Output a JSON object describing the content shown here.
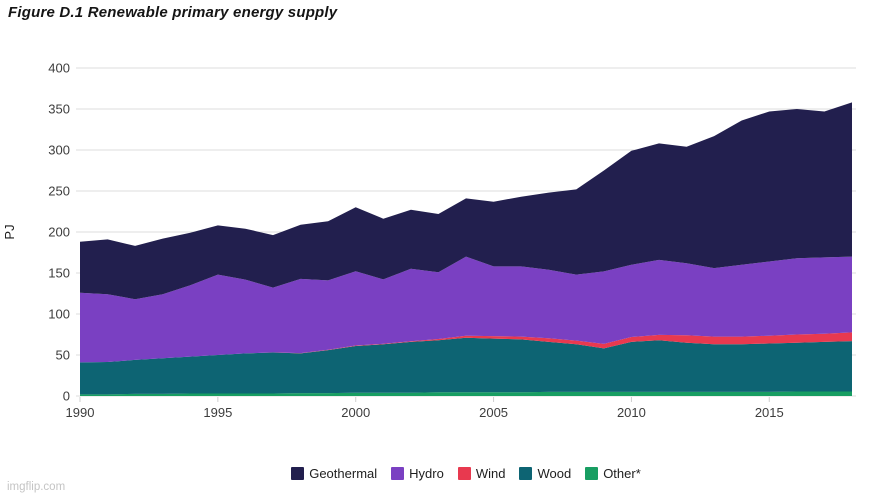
{
  "title": "Figure D.1 Renewable primary energy supply",
  "watermark": "imgflip.com",
  "chart_data": {
    "type": "area",
    "stacked": true,
    "title": "Figure D.1 Renewable primary energy supply",
    "xlabel": "",
    "ylabel": "PJ",
    "ylim": [
      0,
      400
    ],
    "yticks": [
      0,
      50,
      100,
      150,
      200,
      250,
      300,
      350,
      400
    ],
    "xticks": [
      1990,
      1995,
      2000,
      2005,
      2010,
      2015
    ],
    "grid": "horizontal",
    "legend_position": "bottom",
    "x": [
      1990,
      1991,
      1992,
      1993,
      1994,
      1995,
      1996,
      1997,
      1998,
      1999,
      2000,
      2001,
      2002,
      2003,
      2004,
      2005,
      2006,
      2007,
      2008,
      2009,
      2010,
      2011,
      2012,
      2013,
      2014,
      2015,
      2016,
      2017,
      2018
    ],
    "series": [
      {
        "name": "Other*",
        "color": "#189e62",
        "values": [
          2,
          2,
          2.5,
          2.5,
          3,
          3,
          3,
          3,
          3.5,
          3.5,
          4,
          4,
          4,
          4.5,
          4.5,
          4.5,
          4.5,
          5,
          5,
          5,
          5,
          5,
          5,
          5,
          5,
          5,
          5.5,
          5.5,
          5.5
        ]
      },
      {
        "name": "Wood",
        "color": "#0d6473",
        "values": [
          39,
          39.5,
          41.5,
          43.5,
          45,
          47,
          49,
          50,
          48.5,
          52.5,
          57,
          59,
          62,
          63.5,
          66.5,
          65.5,
          64.5,
          61,
          58,
          53,
          61,
          63,
          60,
          58,
          58,
          59,
          59.5,
          60.5,
          61.5
        ]
      },
      {
        "name": "Wind",
        "color": "#e8394f",
        "values": [
          0,
          0,
          0,
          0,
          0,
          0,
          0,
          0.2,
          0.3,
          0.5,
          0.6,
          0.7,
          0.7,
          1.5,
          2.5,
          3,
          3.5,
          4.5,
          4.5,
          5.5,
          6,
          6.5,
          9,
          9.5,
          9.5,
          9.5,
          10,
          10,
          10.5
        ]
      },
      {
        "name": "Hydro",
        "color": "#7a40c2",
        "values": [
          85,
          82.5,
          74,
          78,
          87,
          98,
          90,
          79,
          90.5,
          84.5,
          90.5,
          78.5,
          88.5,
          81.5,
          96.5,
          85,
          85.5,
          83.5,
          80.5,
          88.5,
          88,
          91.5,
          88,
          83.5,
          87.5,
          90.5,
          93,
          93,
          92.5
        ]
      },
      {
        "name": "Geothermal",
        "color": "#221f4e",
        "values": [
          62,
          67,
          65,
          68,
          64,
          60,
          62,
          64,
          66,
          72,
          78,
          74,
          72,
          71,
          71,
          79,
          85,
          94,
          104,
          123,
          139,
          142,
          142,
          161,
          176,
          183,
          182,
          178,
          188
        ]
      }
    ],
    "legend": [
      {
        "label": "Geothermal",
        "color": "#221f4e"
      },
      {
        "label": "Hydro",
        "color": "#7a40c2"
      },
      {
        "label": "Wind",
        "color": "#e8394f"
      },
      {
        "label": "Wood",
        "color": "#0d6473"
      },
      {
        "label": "Other*",
        "color": "#189e62"
      }
    ]
  },
  "style": {
    "grid_color": "#dedede",
    "tick_color": "#cfcfcf",
    "tick_label_color": "#3d3d3d",
    "axis_title_color": "#1a1a1a"
  }
}
